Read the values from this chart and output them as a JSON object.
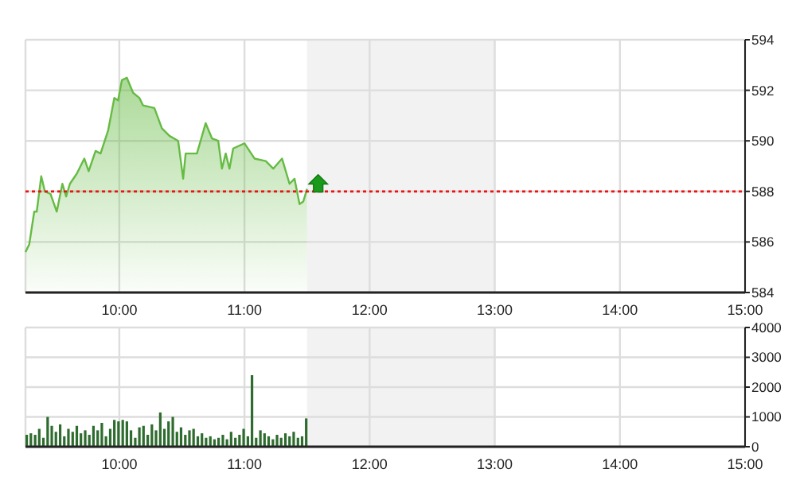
{
  "chart_data": [
    {
      "type": "area",
      "x": [
        9.25,
        9.28,
        9.32,
        9.34,
        9.376,
        9.405,
        9.45,
        9.5,
        9.545,
        9.575,
        9.605,
        9.66,
        9.72,
        9.755,
        9.81,
        9.85,
        9.91,
        9.96,
        9.99,
        10.02,
        10.06,
        10.11,
        10.16,
        10.19,
        10.28,
        10.34,
        10.4,
        10.47,
        10.51,
        10.53,
        10.62,
        10.69,
        10.74,
        10.79,
        10.82,
        10.85,
        10.88,
        10.91,
        11.0,
        11.08,
        11.17,
        11.23,
        11.3,
        11.36,
        11.4,
        11.44,
        11.47,
        11.5
      ],
      "series": [
        {
          "color": "#66bb44",
          "values": [
            585.6,
            585.9,
            587.2,
            587.2,
            588.6,
            588.0,
            587.9,
            587.2,
            588.3,
            587.8,
            588.3,
            588.7,
            589.3,
            588.8,
            589.6,
            589.5,
            590.4,
            591.7,
            591.6,
            592.4,
            592.5,
            591.9,
            591.7,
            591.4,
            591.3,
            590.5,
            590.2,
            590.0,
            588.5,
            589.5,
            589.5,
            590.7,
            590.1,
            590.0,
            588.9,
            589.5,
            588.9,
            589.7,
            589.9,
            589.3,
            589.2,
            588.9,
            589.3,
            588.3,
            588.5,
            587.5,
            587.6,
            588.1
          ]
        }
      ],
      "xlim": [
        9.25,
        15
      ],
      "xticks": [
        {
          "value": 10,
          "label": "10:00"
        },
        {
          "value": 11,
          "label": "11:00"
        },
        {
          "value": 12,
          "label": "12:00"
        },
        {
          "value": 13,
          "label": "13:00"
        },
        {
          "value": 14,
          "label": "14:00"
        },
        {
          "value": 15,
          "label": "15:00"
        }
      ],
      "ylim": [
        584,
        594
      ],
      "yticks": [
        584,
        586,
        588,
        590,
        592,
        594
      ],
      "grid": true,
      "ref_lines": [
        {
          "axis": "y",
          "value": 588,
          "color": "#ee1111",
          "line_style": "dotted"
        }
      ],
      "bands": [
        {
          "axis": "x",
          "from": 11.5,
          "to": 13,
          "color": "#f2f2f2"
        }
      ]
    },
    {
      "type": "bar",
      "x": [
        9.25,
        9.283,
        9.317,
        9.35,
        9.383,
        9.417,
        9.45,
        9.483,
        9.517,
        9.55,
        9.583,
        9.617,
        9.65,
        9.683,
        9.717,
        9.75,
        9.783,
        9.817,
        9.85,
        9.883,
        9.917,
        9.95,
        9.983,
        10.017,
        10.05,
        10.083,
        10.117,
        10.15,
        10.183,
        10.217,
        10.25,
        10.283,
        10.317,
        10.35,
        10.383,
        10.417,
        10.45,
        10.483,
        10.517,
        10.55,
        10.583,
        10.617,
        10.65,
        10.683,
        10.717,
        10.75,
        10.783,
        10.817,
        10.85,
        10.883,
        10.917,
        10.95,
        10.983,
        11.017,
        11.05,
        11.083,
        11.117,
        11.15,
        11.183,
        11.217,
        11.25,
        11.283,
        11.317,
        11.35,
        11.383,
        11.417,
        11.45,
        11.483
      ],
      "series": [
        {
          "color": "#2e6b2e",
          "values": [
            400,
            450,
            400,
            600,
            300,
            1000,
            700,
            500,
            750,
            350,
            600,
            500,
            700,
            450,
            550,
            400,
            700,
            550,
            800,
            350,
            600,
            900,
            850,
            900,
            850,
            550,
            300,
            650,
            700,
            400,
            750,
            550,
            1150,
            600,
            850,
            1000,
            500,
            650,
            400,
            550,
            600,
            350,
            450,
            300,
            350,
            250,
            300,
            400,
            250,
            500,
            300,
            400,
            600,
            350,
            2400,
            300,
            550,
            450,
            350,
            250,
            400,
            300,
            450,
            350,
            500,
            300,
            350,
            950
          ]
        }
      ],
      "xlim": [
        9.25,
        15
      ],
      "xticks": [
        {
          "value": 10,
          "label": "10:00"
        },
        {
          "value": 11,
          "label": "11:00"
        },
        {
          "value": 12,
          "label": "12:00"
        },
        {
          "value": 13,
          "label": "13:00"
        },
        {
          "value": 14,
          "label": "14:00"
        },
        {
          "value": 15,
          "label": "15:00"
        }
      ],
      "ylim": [
        0,
        4000
      ],
      "yticks": [
        0,
        1000,
        2000,
        3000,
        4000
      ],
      "grid": true,
      "bands": [
        {
          "axis": "x",
          "from": 11.5,
          "to": 13,
          "color": "#f2f2f2"
        }
      ]
    }
  ]
}
